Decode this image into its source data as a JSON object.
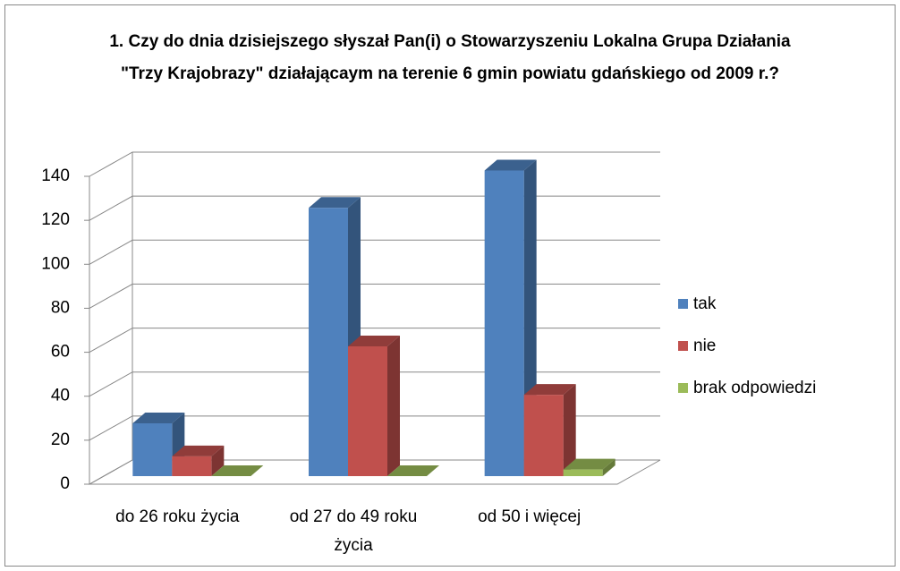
{
  "chart_data": {
    "type": "bar3d",
    "title": "1. Czy do dnia dzisiejszego słyszał Pan(i) o Stowarzyszeniu Lokalna Grupa Działania \"Trzy Krajobrazy\" działającaym na terenie 6 gmin powiatu gdańskiego od 2009 r.?",
    "categories": [
      "do 26 roku życia",
      "od 27 do 49 roku życia",
      "od 50 i więcej"
    ],
    "series": [
      {
        "name": "tak",
        "color": "#4f81bd",
        "values": [
          24,
          122,
          139
        ]
      },
      {
        "name": "nie",
        "color": "#c0504d",
        "values": [
          9,
          59,
          37
        ]
      },
      {
        "name": "brak odpowiedzi",
        "color": "#9bbb59",
        "values": [
          0,
          0,
          3
        ]
      }
    ],
    "ylim": [
      0,
      140
    ],
    "yticks": [
      0,
      20,
      40,
      60,
      80,
      100,
      120,
      140
    ],
    "grid": true,
    "legend": "right"
  }
}
